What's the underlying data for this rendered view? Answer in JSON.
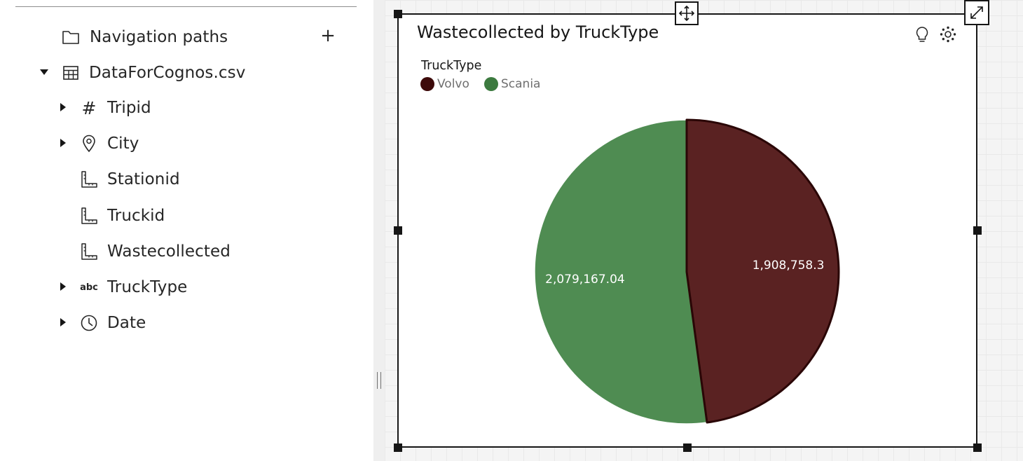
{
  "data_panel": {
    "nav_paths_label": "Navigation paths",
    "add_symbol": "+",
    "source_label": "DataForCognos.csv",
    "fields": [
      {
        "label": "Tripid",
        "icon": "hash-icon",
        "expandable": true
      },
      {
        "label": "City",
        "icon": "location-pin-icon",
        "expandable": true
      },
      {
        "label": "Stationid",
        "icon": "measure-ruler-icon",
        "expandable": false
      },
      {
        "label": "Truckid",
        "icon": "measure-ruler-icon",
        "expandable": false
      },
      {
        "label": "Wastecollected",
        "icon": "measure-ruler-icon",
        "expandable": false
      },
      {
        "label": "TruckType",
        "icon": "text-abc-icon",
        "expandable": true
      },
      {
        "label": "Date",
        "icon": "clock-icon",
        "expandable": true
      }
    ],
    "abc_glyph": "abc",
    "hash_glyph": "#"
  },
  "widget": {
    "title": "Wastecollected by TruckType",
    "legend_title": "TruckType"
  },
  "chart_data": {
    "type": "pie",
    "title": "Wastecollected by TruckType",
    "legend_title": "TruckType",
    "legend_position": "top-left",
    "slices": [
      {
        "label": "Volvo",
        "value": 1908758.3,
        "display": "1,908,758.3",
        "color": "#5a2222",
        "legend_color": "#3d0a0a"
      },
      {
        "label": "Scania",
        "value": 2079167.04,
        "display": "2,079,167.04",
        "color": "#4f8c52",
        "legend_color": "#3c7a3f"
      }
    ]
  },
  "colors": {
    "volvo_outline": "#2a0606",
    "scania_outline": "#ffffff",
    "accent": "#161616"
  }
}
